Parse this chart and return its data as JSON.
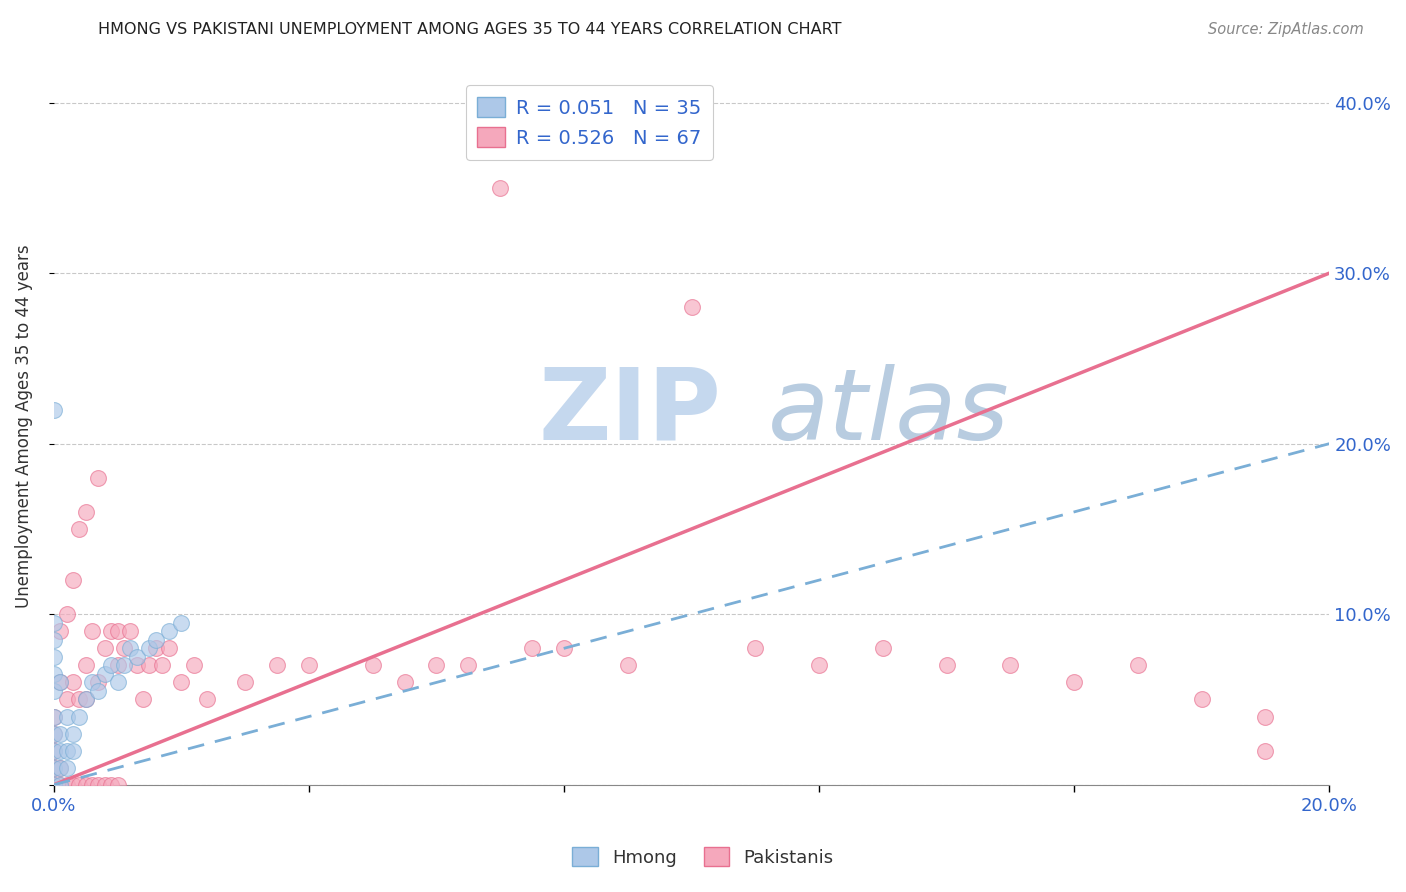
{
  "title": "HMONG VS PAKISTANI UNEMPLOYMENT AMONG AGES 35 TO 44 YEARS CORRELATION CHART",
  "source": "Source: ZipAtlas.com",
  "ylabel": "Unemployment Among Ages 35 to 44 years",
  "xlim": [
    0.0,
    0.2
  ],
  "ylim": [
    0.0,
    0.42
  ],
  "x_tick_positions": [
    0.0,
    0.04,
    0.08,
    0.12,
    0.16,
    0.2
  ],
  "x_tick_labels": [
    "0.0%",
    "",
    "",
    "",
    "",
    "20.0%"
  ],
  "y_tick_positions": [
    0.0,
    0.1,
    0.2,
    0.3,
    0.4
  ],
  "y_tick_labels_right": [
    "",
    "10.0%",
    "20.0%",
    "30.0%",
    "40.0%"
  ],
  "hmong_R": 0.051,
  "hmong_N": 35,
  "pakistani_R": 0.526,
  "pakistani_N": 67,
  "hmong_color": "#adc8e8",
  "pakistani_color": "#f5a8bc",
  "hmong_edge_color": "#7aaed6",
  "pakistani_edge_color": "#e87090",
  "hmong_line_color": "#7aaed6",
  "pakistani_line_color": "#e87090",
  "legend_label_hmong": "Hmong",
  "legend_label_pakistani": "Pakistanis",
  "watermark_zip": "ZIP",
  "watermark_atlas": "atlas",
  "watermark_color_zip": "#c5d8ee",
  "watermark_color_atlas": "#b8cce0",
  "hmong_line_x": [
    0.0,
    0.2
  ],
  "hmong_line_y": [
    0.0,
    0.2
  ],
  "pakistani_line_x": [
    0.0,
    0.2
  ],
  "pakistani_line_y": [
    0.0,
    0.3
  ],
  "hmong_x": [
    0.0,
    0.0,
    0.0,
    0.0,
    0.0,
    0.0,
    0.0,
    0.0,
    0.0,
    0.0,
    0.001,
    0.001,
    0.001,
    0.001,
    0.001,
    0.002,
    0.002,
    0.002,
    0.003,
    0.003,
    0.004,
    0.005,
    0.006,
    0.007,
    0.008,
    0.009,
    0.01,
    0.011,
    0.012,
    0.013,
    0.015,
    0.016,
    0.018,
    0.02,
    0.0
  ],
  "hmong_y": [
    0.0,
    0.01,
    0.02,
    0.03,
    0.04,
    0.055,
    0.065,
    0.075,
    0.085,
    0.095,
    0.0,
    0.01,
    0.02,
    0.03,
    0.06,
    0.01,
    0.02,
    0.04,
    0.02,
    0.03,
    0.04,
    0.05,
    0.06,
    0.055,
    0.065,
    0.07,
    0.06,
    0.07,
    0.08,
    0.075,
    0.08,
    0.085,
    0.09,
    0.095,
    0.22
  ],
  "pakistani_x": [
    0.0,
    0.0,
    0.0,
    0.0,
    0.0,
    0.001,
    0.001,
    0.001,
    0.001,
    0.002,
    0.002,
    0.002,
    0.003,
    0.003,
    0.003,
    0.004,
    0.004,
    0.004,
    0.005,
    0.005,
    0.005,
    0.005,
    0.006,
    0.006,
    0.007,
    0.007,
    0.007,
    0.008,
    0.008,
    0.009,
    0.009,
    0.01,
    0.01,
    0.01,
    0.011,
    0.012,
    0.013,
    0.014,
    0.015,
    0.016,
    0.017,
    0.018,
    0.02,
    0.022,
    0.024,
    0.03,
    0.035,
    0.04,
    0.05,
    0.055,
    0.06,
    0.065,
    0.07,
    0.075,
    0.08,
    0.09,
    0.1,
    0.11,
    0.12,
    0.13,
    0.14,
    0.15,
    0.16,
    0.17,
    0.18,
    0.19,
    0.19
  ],
  "pakistani_y": [
    0.0,
    0.01,
    0.02,
    0.03,
    0.04,
    0.0,
    0.01,
    0.06,
    0.09,
    0.0,
    0.05,
    0.1,
    0.0,
    0.06,
    0.12,
    0.0,
    0.05,
    0.15,
    0.0,
    0.05,
    0.07,
    0.16,
    0.0,
    0.09,
    0.0,
    0.06,
    0.18,
    0.0,
    0.08,
    0.0,
    0.09,
    0.0,
    0.07,
    0.09,
    0.08,
    0.09,
    0.07,
    0.05,
    0.07,
    0.08,
    0.07,
    0.08,
    0.06,
    0.07,
    0.05,
    0.06,
    0.07,
    0.07,
    0.07,
    0.06,
    0.07,
    0.07,
    0.35,
    0.08,
    0.08,
    0.07,
    0.28,
    0.08,
    0.07,
    0.08,
    0.07,
    0.07,
    0.06,
    0.07,
    0.05,
    0.04,
    0.02
  ]
}
